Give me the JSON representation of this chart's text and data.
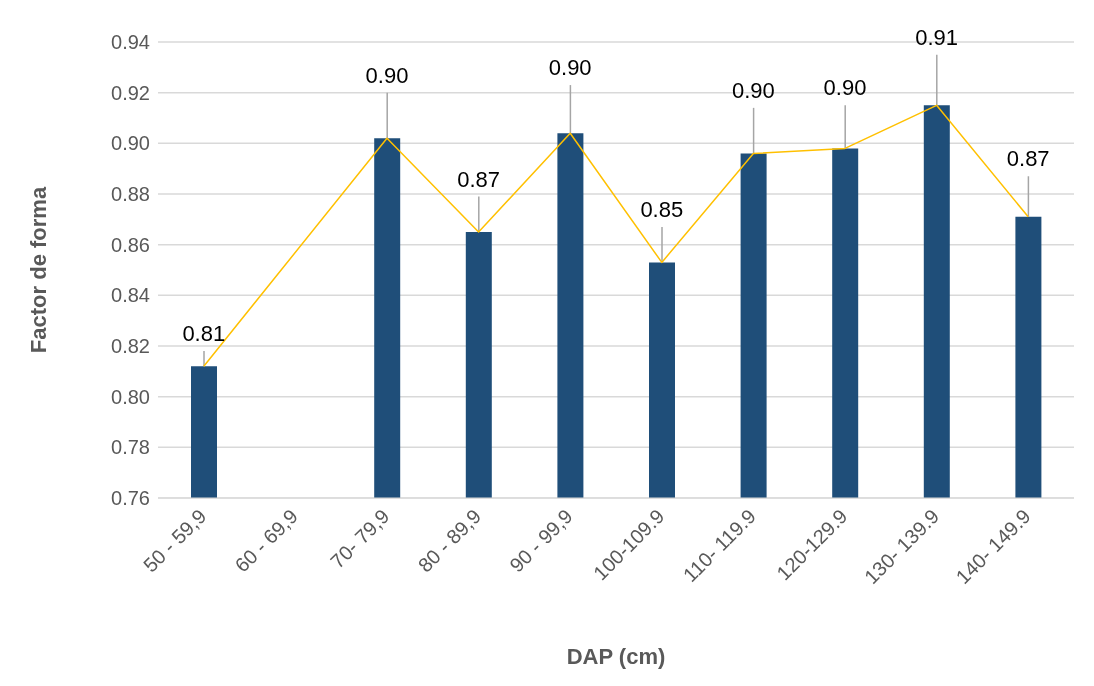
{
  "chart_data": {
    "type": "bar",
    "xlabel": "DAP (cm)",
    "ylabel": "Factor de forma",
    "categories": [
      "50 - 59,9",
      "60 - 69,9",
      "70- 79,9",
      "80 - 89,9",
      "90 - 99,9",
      "100-109.9",
      "110- 119.9",
      "120-129.9",
      "130- 139.9",
      "140- 149.9"
    ],
    "series": [
      {
        "color": "#1f4e79",
        "values": [
          0.812,
          null,
          0.902,
          0.865,
          0.904,
          0.853,
          0.896,
          0.898,
          0.915,
          0.871
        ],
        "errors": [
          [
            0.812,
            0.818
          ],
          null,
          [
            0.902,
            0.92
          ],
          [
            0.865,
            0.879
          ],
          [
            0.904,
            0.923
          ],
          [
            0.853,
            0.867
          ],
          [
            0.896,
            0.914
          ],
          [
            0.898,
            0.915
          ],
          [
            0.915,
            0.935
          ],
          [
            0.871,
            0.887
          ]
        ],
        "value_labels": [
          "0.81",
          null,
          "0.90",
          "0.87",
          "0.90",
          "0.85",
          "0.90",
          "0.90",
          "0.91",
          "0.87"
        ]
      },
      {
        "type": "line",
        "color": "#ffc000",
        "values": [
          0.812,
          null,
          0.902,
          0.865,
          0.904,
          0.853,
          0.896,
          0.898,
          0.915,
          0.871
        ]
      }
    ],
    "ylim": [
      0.76,
      0.94
    ],
    "yticks": [
      0.76,
      0.78,
      {
        "value": 0.8,
        "label": "0.80"
      },
      0.82,
      0.84,
      0.86,
      0.88,
      {
        "value": 0.9,
        "label": "0.90"
      },
      0.92,
      0.94
    ],
    "grid": "y"
  }
}
